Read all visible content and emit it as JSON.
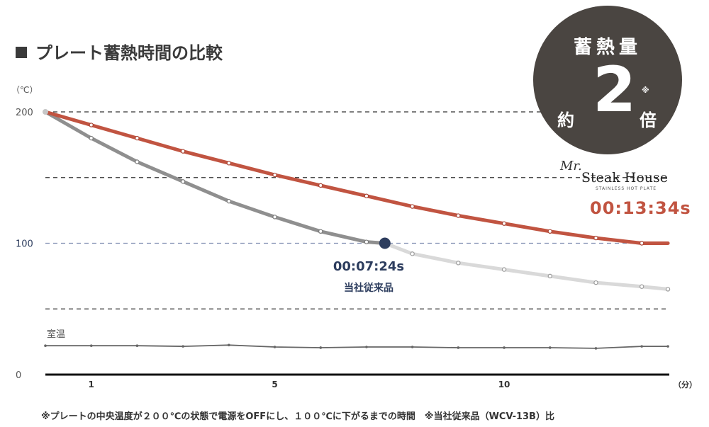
{
  "title": "プレート蓄熱時間の比較",
  "badge": {
    "line1": "蓄熱量",
    "prefix": "約",
    "number": "2",
    "mark": "※",
    "suffix": "倍"
  },
  "brand": {
    "script": "Mr.",
    "name": "Steak House",
    "sub": "STAINLESS HOT PLATE"
  },
  "labels": {
    "brand_time": "00:13:34s",
    "conventional_time": "00:07:24s",
    "conventional_name": "当社従来品",
    "room_temp": "室温"
  },
  "footnote": "※プレートの中央温度が２００℃の状態で電源をOFFにし、１００℃に下がるまでの時間　※当社従来品（WCV-13B）比",
  "colors": {
    "brand_line": "#c15441",
    "conventional_line": "#8f8f8f",
    "conventional_line_after": "#d9d9d9",
    "marker_fill": "#2d3d5e",
    "room_line": "#666666",
    "badge_bg": "#4a4541"
  },
  "chart_data": {
    "type": "line",
    "xlabel": "（分）",
    "ylabel": "（℃）",
    "xlim": [
      0,
      13.6
    ],
    "ylim": [
      0,
      200
    ],
    "xticks": [
      1,
      5,
      10
    ],
    "yticks": [
      {
        "value": 200,
        "label": "200"
      },
      {
        "value": 100,
        "label": "100"
      },
      {
        "value": 0,
        "label": "0"
      }
    ],
    "gridlines": [
      200,
      150,
      100,
      50
    ],
    "series": [
      {
        "name": "Mr. Steak House",
        "x": [
          0,
          1,
          2,
          3,
          4,
          5,
          6,
          7,
          8,
          9,
          10,
          11,
          12,
          13,
          13.57
        ],
        "y": [
          200,
          190,
          180,
          170,
          161,
          152,
          144,
          136,
          128,
          121,
          115,
          109,
          104,
          100,
          100
        ]
      },
      {
        "name": "当社従来品",
        "x": [
          0,
          1,
          2,
          3,
          4,
          5,
          6,
          7,
          7.4,
          8,
          9,
          10,
          11,
          12,
          13,
          13.57
        ],
        "y": [
          200,
          180,
          162,
          147,
          132,
          120,
          109,
          101,
          100,
          92,
          85,
          80,
          75,
          70,
          67,
          65
        ]
      },
      {
        "name": "室温",
        "x": [
          0,
          1,
          2,
          3,
          4,
          5,
          6,
          7,
          8,
          9,
          10,
          11,
          12,
          13,
          13.57
        ],
        "y": [
          22,
          22,
          22,
          21.5,
          22.5,
          21,
          20.5,
          21,
          21,
          20.5,
          20.5,
          20.5,
          20,
          21.5,
          21.5
        ]
      }
    ],
    "marker": {
      "series": "当社従来品",
      "x": 7.4,
      "y": 100
    }
  }
}
